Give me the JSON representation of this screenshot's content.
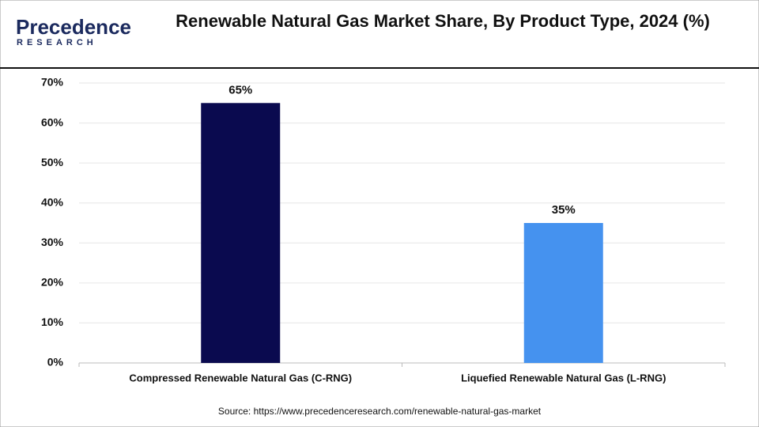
{
  "logo": {
    "name": "Precedence",
    "tagline": "RESEARCH"
  },
  "chart_data": {
    "type": "bar",
    "title": "Renewable Natural Gas Market Share, By Product Type, 2024 (%)",
    "categories": [
      "Compressed Renewable Natural Gas (C-RNG)",
      "Liquefied Renewable Natural Gas (L-RNG)"
    ],
    "values": [
      65,
      35
    ],
    "value_labels": [
      "65%",
      "35%"
    ],
    "colors": [
      "#0a0a4f",
      "#4592ef"
    ],
    "ylim": [
      0,
      70
    ],
    "yticks": [
      {
        "value": 0,
        "label": "0%"
      },
      {
        "value": 10,
        "label": "10%"
      },
      {
        "value": 20,
        "label": "20%"
      },
      {
        "value": 30,
        "label": "30%"
      },
      {
        "value": 40,
        "label": "40%"
      },
      {
        "value": 50,
        "label": "50%"
      },
      {
        "value": 60,
        "label": "60%"
      },
      {
        "value": 70,
        "label": "70%"
      }
    ],
    "grid": true,
    "source": "Source: https://www.precedenceresearch.com/renewable-natural-gas-market"
  }
}
